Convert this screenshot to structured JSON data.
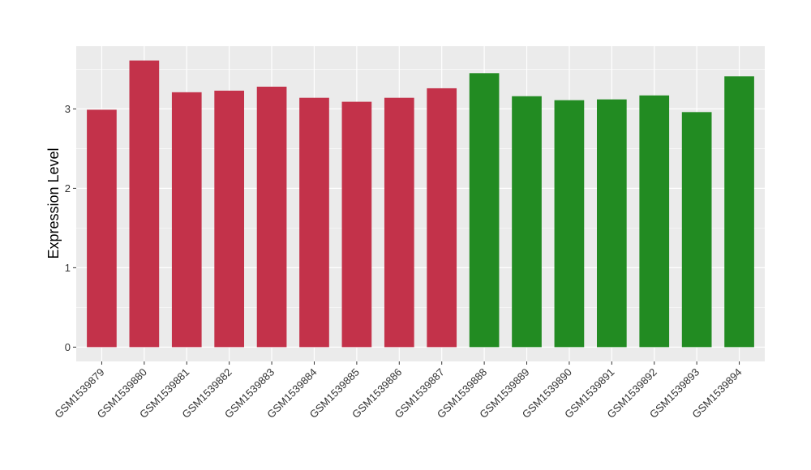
{
  "chart_data": {
    "type": "bar",
    "title": "",
    "xlabel": "",
    "ylabel": "Expression Level",
    "ylim": [
      -0.18,
      3.79
    ],
    "yticks": [
      0,
      1,
      2,
      3
    ],
    "grid": true,
    "legend": "none",
    "categories": [
      "GSM1539879",
      "GSM1539880",
      "GSM1539881",
      "GSM1539882",
      "GSM1539883",
      "GSM1539884",
      "GSM1539885",
      "GSM1539886",
      "GSM1539887",
      "GSM1539888",
      "GSM1539889",
      "GSM1539890",
      "GSM1539891",
      "GSM1539892",
      "GSM1539893",
      "GSM1539894"
    ],
    "values": [
      2.99,
      3.61,
      3.21,
      3.23,
      3.28,
      3.14,
      3.09,
      3.14,
      3.26,
      3.45,
      3.16,
      3.11,
      3.12,
      3.17,
      2.96,
      3.41
    ],
    "group_colors": [
      "#C3324A",
      "#C3324A",
      "#C3324A",
      "#C3324A",
      "#C3324A",
      "#C3324A",
      "#C3324A",
      "#C3324A",
      "#C3324A",
      "#228B22",
      "#228B22",
      "#228B22",
      "#228B22",
      "#228B22",
      "#228B22",
      "#228B22"
    ],
    "panel_background": "#EBEBEB",
    "grid_color": "#FFFFFF"
  }
}
